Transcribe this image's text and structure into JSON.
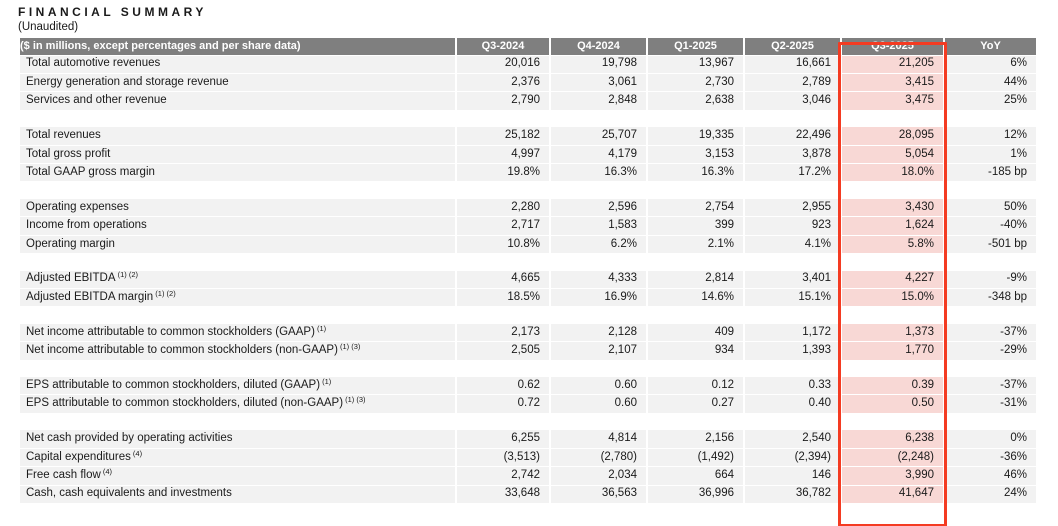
{
  "page": {
    "title": "FINANCIAL SUMMARY",
    "subtitle": "(Unaudited)"
  },
  "colors": {
    "header_bg": "#7f7f7f",
    "header_text": "#ffffff",
    "row_bg": "#f2f2f2",
    "text": "#1a1a1a",
    "highlight_cell_bg": "#f8d8d5",
    "highlight_border": "#f43b22",
    "page_bg": "#ffffff"
  },
  "table": {
    "header": {
      "label": "($ in millions, except percentages and per share data)",
      "columns": [
        "Q3-2024",
        "Q4-2024",
        "Q1-2025",
        "Q2-2025",
        "Q3-2025",
        "YoY"
      ]
    },
    "highlighted_column": "Q3-2025",
    "highlight_col_index": 4,
    "sections": [
      {
        "rows": [
          {
            "label": "Total automotive revenues",
            "sup": "",
            "values": [
              "20,016",
              "19,798",
              "13,967",
              "16,661",
              "21,205",
              "6%"
            ]
          },
          {
            "label": "Energy generation and storage revenue",
            "sup": "",
            "values": [
              "2,376",
              "3,061",
              "2,730",
              "2,789",
              "3,415",
              "44%"
            ]
          },
          {
            "label": "Services and other revenue",
            "sup": "",
            "values": [
              "2,790",
              "2,848",
              "2,638",
              "3,046",
              "3,475",
              "25%"
            ]
          }
        ]
      },
      {
        "rows": [
          {
            "label": "Total revenues",
            "sup": "",
            "values": [
              "25,182",
              "25,707",
              "19,335",
              "22,496",
              "28,095",
              "12%"
            ]
          },
          {
            "label": "Total gross profit",
            "sup": "",
            "values": [
              "4,997",
              "4,179",
              "3,153",
              "3,878",
              "5,054",
              "1%"
            ]
          },
          {
            "label": "Total GAAP gross margin",
            "sup": "",
            "values": [
              "19.8%",
              "16.3%",
              "16.3%",
              "17.2%",
              "18.0%",
              "-185 bp"
            ]
          }
        ]
      },
      {
        "rows": [
          {
            "label": "Operating expenses",
            "sup": "",
            "values": [
              "2,280",
              "2,596",
              "2,754",
              "2,955",
              "3,430",
              "50%"
            ]
          },
          {
            "label": "Income from operations",
            "sup": "",
            "values": [
              "2,717",
              "1,583",
              "399",
              "923",
              "1,624",
              "-40%"
            ]
          },
          {
            "label": "Operating margin",
            "sup": "",
            "values": [
              "10.8%",
              "6.2%",
              "2.1%",
              "4.1%",
              "5.8%",
              "-501 bp"
            ]
          }
        ]
      },
      {
        "rows": [
          {
            "label": "Adjusted EBITDA",
            "sup": "(1) (2)",
            "values": [
              "4,665",
              "4,333",
              "2,814",
              "3,401",
              "4,227",
              "-9%"
            ]
          },
          {
            "label": "Adjusted EBITDA margin",
            "sup": "(1) (2)",
            "values": [
              "18.5%",
              "16.9%",
              "14.6%",
              "15.1%",
              "15.0%",
              "-348 bp"
            ]
          }
        ]
      },
      {
        "rows": [
          {
            "label": "Net income attributable to common stockholders (GAAP)",
            "sup": "(1)",
            "values": [
              "2,173",
              "2,128",
              "409",
              "1,172",
              "1,373",
              "-37%"
            ]
          },
          {
            "label": "Net income attributable to common stockholders (non-GAAP)",
            "sup": "(1) (3)",
            "values": [
              "2,505",
              "2,107",
              "934",
              "1,393",
              "1,770",
              "-29%"
            ]
          }
        ]
      },
      {
        "rows": [
          {
            "label": "EPS attributable to common stockholders, diluted (GAAP)",
            "sup": "(1)",
            "values": [
              "0.62",
              "0.60",
              "0.12",
              "0.33",
              "0.39",
              "-37%"
            ]
          },
          {
            "label": "EPS attributable to common stockholders, diluted (non-GAAP)",
            "sup": "(1) (3)",
            "values": [
              "0.72",
              "0.60",
              "0.27",
              "0.40",
              "0.50",
              "-31%"
            ]
          }
        ]
      },
      {
        "rows": [
          {
            "label": "Net cash provided by operating activities",
            "sup": "",
            "values": [
              "6,255",
              "4,814",
              "2,156",
              "2,540",
              "6,238",
              "0%"
            ]
          },
          {
            "label": "Capital expenditures",
            "sup": "(4)",
            "values": [
              "(3,513)",
              "(2,780)",
              "(1,492)",
              "(2,394)",
              "(2,248)",
              "-36%"
            ]
          },
          {
            "label": "Free cash flow",
            "sup": "(4)",
            "values": [
              "2,742",
              "2,034",
              "664",
              "146",
              "3,990",
              "46%"
            ]
          },
          {
            "label": "Cash, cash equivalents and investments",
            "sup": "",
            "values": [
              "33,648",
              "36,563",
              "36,996",
              "36,782",
              "41,647",
              "24%"
            ]
          }
        ]
      }
    ]
  }
}
